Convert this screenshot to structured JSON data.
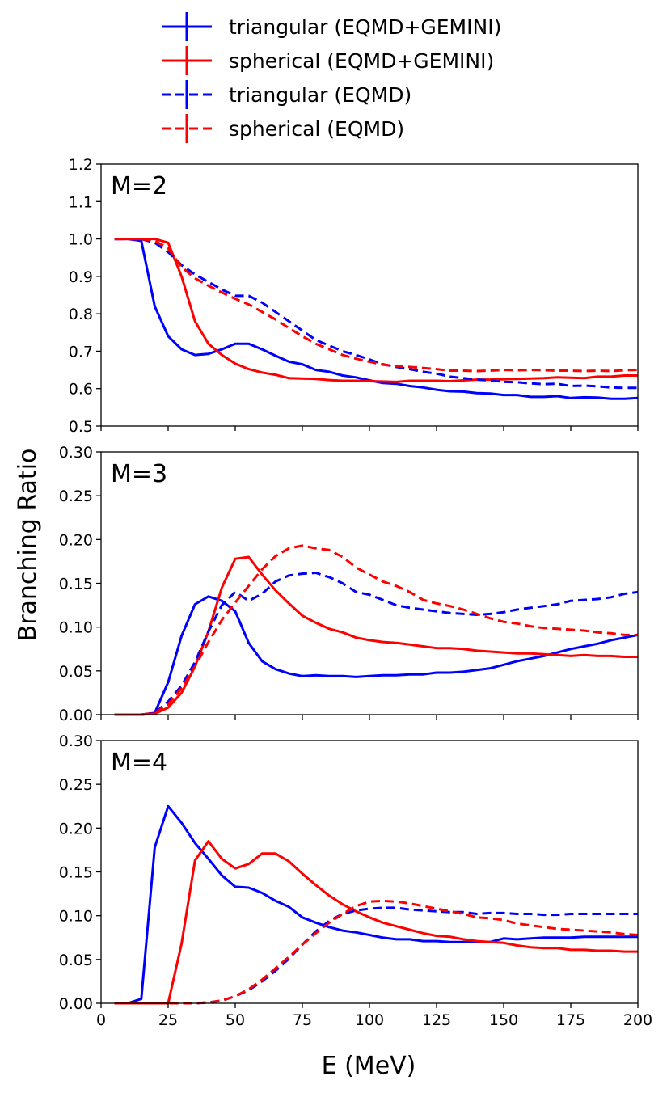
{
  "chart_data": {
    "type": "line",
    "xlabel": "E (MeV)",
    "ylabel": "Branching Ratio",
    "xlim": [
      0,
      200
    ],
    "x_ticks": [
      "0",
      "25",
      "50",
      "75",
      "100",
      "125",
      "150",
      "175",
      "200"
    ],
    "colors": {
      "triangular": "#0000ff",
      "spherical": "#ff0000"
    },
    "legend": [
      {
        "label": "triangular (EQMD+GEMINI)",
        "color": "#0000ff",
        "style": "solid"
      },
      {
        "label": "spherical (EQMD+GEMINI)",
        "color": "#ff0000",
        "style": "solid"
      },
      {
        "label": "triangular (EQMD)",
        "color": "#0000ff",
        "style": "dashed"
      },
      {
        "label": "spherical (EQMD)",
        "color": "#ff0000",
        "style": "dashed"
      }
    ],
    "panels": [
      {
        "label": "M=2",
        "ylim": [
          0.5,
          1.2
        ],
        "y_ticks": [
          "0.5",
          "0.6",
          "0.7",
          "0.8",
          "0.9",
          "1.0",
          "1.1",
          "1.2"
        ],
        "x": [
          5,
          10,
          15,
          20,
          25,
          30,
          35,
          40,
          45,
          50,
          55,
          60,
          65,
          70,
          75,
          80,
          85,
          90,
          95,
          100,
          105,
          110,
          115,
          120,
          125,
          130,
          135,
          140,
          145,
          150,
          155,
          160,
          165,
          170,
          175,
          180,
          185,
          190,
          195,
          200
        ],
        "series": [
          {
            "name": "triangular (EQMD+GEMINI)",
            "color": "#0000ff",
            "dashed": false,
            "values": [
              1.0,
              1.0,
              0.995,
              0.82,
              0.74,
              0.705,
              0.69,
              0.693,
              0.705,
              0.72,
              0.72,
              0.705,
              0.688,
              0.672,
              0.665,
              0.65,
              0.645,
              0.635,
              0.63,
              0.622,
              0.615,
              0.613,
              0.607,
              0.603,
              0.597,
              0.593,
              0.592,
              0.588,
              0.587,
              0.583,
              0.583,
              0.578,
              0.578,
              0.58,
              0.575,
              0.577,
              0.576,
              0.573,
              0.573,
              0.575
            ]
          },
          {
            "name": "spherical (EQMD+GEMINI)",
            "color": "#ff0000",
            "dashed": false,
            "values": [
              1.0,
              1.0,
              1.0,
              1.0,
              0.99,
              0.9,
              0.78,
              0.72,
              0.69,
              0.667,
              0.652,
              0.643,
              0.637,
              0.628,
              0.627,
              0.626,
              0.623,
              0.621,
              0.621,
              0.62,
              0.619,
              0.618,
              0.621,
              0.621,
              0.621,
              0.62,
              0.622,
              0.624,
              0.624,
              0.625,
              0.626,
              0.627,
              0.628,
              0.63,
              0.629,
              0.628,
              0.632,
              0.632,
              0.635,
              0.635
            ]
          },
          {
            "name": "triangular (EQMD)",
            "color": "#0000ff",
            "dashed": true,
            "values": [
              1.0,
              1.0,
              1.0,
              0.99,
              0.965,
              0.93,
              0.905,
              0.885,
              0.865,
              0.848,
              0.848,
              0.83,
              0.805,
              0.78,
              0.755,
              0.73,
              0.715,
              0.7,
              0.69,
              0.678,
              0.665,
              0.658,
              0.652,
              0.645,
              0.64,
              0.632,
              0.628,
              0.624,
              0.622,
              0.618,
              0.617,
              0.614,
              0.612,
              0.613,
              0.607,
              0.608,
              0.606,
              0.603,
              0.602,
              0.602
            ]
          },
          {
            "name": "spherical (EQMD)",
            "color": "#ff0000",
            "dashed": true,
            "values": [
              1.0,
              1.0,
              1.0,
              0.995,
              0.975,
              0.925,
              0.895,
              0.875,
              0.857,
              0.84,
              0.825,
              0.805,
              0.785,
              0.762,
              0.74,
              0.72,
              0.705,
              0.69,
              0.68,
              0.672,
              0.664,
              0.66,
              0.658,
              0.655,
              0.652,
              0.648,
              0.648,
              0.647,
              0.648,
              0.65,
              0.649,
              0.65,
              0.649,
              0.648,
              0.648,
              0.647,
              0.648,
              0.647,
              0.649,
              0.65
            ]
          }
        ]
      },
      {
        "label": "M=3",
        "ylim": [
          0.0,
          0.3
        ],
        "y_ticks": [
          "0.00",
          "0.05",
          "0.10",
          "0.15",
          "0.20",
          "0.25",
          "0.30"
        ],
        "x": [
          5,
          10,
          15,
          20,
          25,
          30,
          35,
          40,
          45,
          50,
          55,
          60,
          65,
          70,
          75,
          80,
          85,
          90,
          95,
          100,
          105,
          110,
          115,
          120,
          125,
          130,
          135,
          140,
          145,
          150,
          155,
          160,
          165,
          170,
          175,
          180,
          185,
          190,
          195,
          200
        ],
        "series": [
          {
            "name": "triangular (EQMD+GEMINI)",
            "color": "#0000ff",
            "dashed": false,
            "values": [
              0.0,
              0.0,
              0.0,
              0.002,
              0.037,
              0.09,
              0.126,
              0.135,
              0.13,
              0.118,
              0.082,
              0.061,
              0.052,
              0.047,
              0.044,
              0.045,
              0.044,
              0.044,
              0.043,
              0.044,
              0.045,
              0.045,
              0.046,
              0.046,
              0.048,
              0.048,
              0.049,
              0.051,
              0.053,
              0.057,
              0.061,
              0.064,
              0.067,
              0.071,
              0.075,
              0.078,
              0.081,
              0.085,
              0.088,
              0.091
            ]
          },
          {
            "name": "spherical (EQMD+GEMINI)",
            "color": "#ff0000",
            "dashed": false,
            "values": [
              0.0,
              0.0,
              0.0,
              0.001,
              0.008,
              0.025,
              0.055,
              0.095,
              0.145,
              0.178,
              0.18,
              0.16,
              0.142,
              0.127,
              0.113,
              0.105,
              0.098,
              0.094,
              0.088,
              0.085,
              0.083,
              0.082,
              0.08,
              0.078,
              0.076,
              0.076,
              0.075,
              0.073,
              0.072,
              0.071,
              0.07,
              0.07,
              0.069,
              0.068,
              0.067,
              0.068,
              0.067,
              0.067,
              0.066,
              0.066
            ]
          },
          {
            "name": "triangular (EQMD)",
            "color": "#0000ff",
            "dashed": true,
            "values": [
              0.0,
              0.0,
              0.0,
              0.002,
              0.015,
              0.033,
              0.06,
              0.095,
              0.125,
              0.14,
              0.13,
              0.138,
              0.152,
              0.159,
              0.161,
              0.162,
              0.157,
              0.15,
              0.14,
              0.137,
              0.131,
              0.125,
              0.122,
              0.12,
              0.118,
              0.116,
              0.115,
              0.114,
              0.115,
              0.117,
              0.12,
              0.122,
              0.124,
              0.126,
              0.13,
              0.131,
              0.132,
              0.134,
              0.138,
              0.14
            ]
          },
          {
            "name": "spherical (EQMD)",
            "color": "#ff0000",
            "dashed": true,
            "values": [
              0.0,
              0.0,
              0.0,
              0.002,
              0.012,
              0.03,
              0.055,
              0.083,
              0.108,
              0.128,
              0.147,
              0.166,
              0.181,
              0.19,
              0.193,
              0.19,
              0.188,
              0.18,
              0.168,
              0.16,
              0.152,
              0.147,
              0.14,
              0.131,
              0.127,
              0.124,
              0.12,
              0.115,
              0.11,
              0.106,
              0.104,
              0.101,
              0.099,
              0.098,
              0.097,
              0.096,
              0.094,
              0.093,
              0.091,
              0.091
            ]
          }
        ]
      },
      {
        "label": "M=4",
        "ylim": [
          0.0,
          0.3
        ],
        "y_ticks": [
          "0.00",
          "0.05",
          "0.10",
          "0.15",
          "0.20",
          "0.25",
          "0.30"
        ],
        "x": [
          5,
          10,
          15,
          20,
          25,
          30,
          35,
          40,
          45,
          50,
          55,
          60,
          65,
          70,
          75,
          80,
          85,
          90,
          95,
          100,
          105,
          110,
          115,
          120,
          125,
          130,
          135,
          140,
          145,
          150,
          155,
          160,
          165,
          170,
          175,
          180,
          185,
          190,
          195,
          200
        ],
        "series": [
          {
            "name": "triangular (EQMD+GEMINI)",
            "color": "#0000ff",
            "dashed": false,
            "values": [
              0.0,
              0.0,
              0.005,
              0.178,
              0.225,
              0.206,
              0.183,
              0.165,
              0.146,
              0.133,
              0.132,
              0.126,
              0.117,
              0.11,
              0.098,
              0.092,
              0.087,
              0.083,
              0.081,
              0.078,
              0.075,
              0.073,
              0.073,
              0.071,
              0.071,
              0.07,
              0.07,
              0.07,
              0.07,
              0.074,
              0.073,
              0.074,
              0.075,
              0.075,
              0.075,
              0.076,
              0.076,
              0.076,
              0.076,
              0.076
            ]
          },
          {
            "name": "spherical (EQMD+GEMINI)",
            "color": "#ff0000",
            "dashed": false,
            "values": [
              0.0,
              0.0,
              0.0,
              0.0,
              0.0,
              0.068,
              0.163,
              0.185,
              0.165,
              0.154,
              0.159,
              0.171,
              0.171,
              0.162,
              0.148,
              0.135,
              0.123,
              0.113,
              0.105,
              0.098,
              0.092,
              0.088,
              0.084,
              0.08,
              0.077,
              0.076,
              0.073,
              0.071,
              0.07,
              0.069,
              0.066,
              0.064,
              0.063,
              0.063,
              0.061,
              0.061,
              0.06,
              0.06,
              0.059,
              0.059
            ]
          },
          {
            "name": "triangular (EQMD)",
            "color": "#0000ff",
            "dashed": true,
            "values": [
              0.0,
              0.0,
              0.0,
              0.0,
              0.0,
              0.0,
              0.0,
              0.001,
              0.003,
              0.008,
              0.015,
              0.025,
              0.037,
              0.051,
              0.067,
              0.082,
              0.094,
              0.102,
              0.106,
              0.108,
              0.109,
              0.109,
              0.107,
              0.106,
              0.105,
              0.104,
              0.104,
              0.102,
              0.103,
              0.103,
              0.102,
              0.102,
              0.101,
              0.101,
              0.102,
              0.102,
              0.102,
              0.102,
              0.102,
              0.102
            ]
          },
          {
            "name": "spherical (EQMD)",
            "color": "#ff0000",
            "dashed": true,
            "values": [
              0.0,
              0.0,
              0.0,
              0.0,
              0.0,
              0.0,
              0.0,
              0.001,
              0.003,
              0.008,
              0.016,
              0.027,
              0.04,
              0.053,
              0.067,
              0.08,
              0.092,
              0.102,
              0.111,
              0.116,
              0.117,
              0.116,
              0.114,
              0.111,
              0.108,
              0.105,
              0.102,
              0.098,
              0.097,
              0.095,
              0.091,
              0.089,
              0.087,
              0.085,
              0.084,
              0.083,
              0.082,
              0.081,
              0.079,
              0.078
            ]
          }
        ]
      }
    ]
  }
}
